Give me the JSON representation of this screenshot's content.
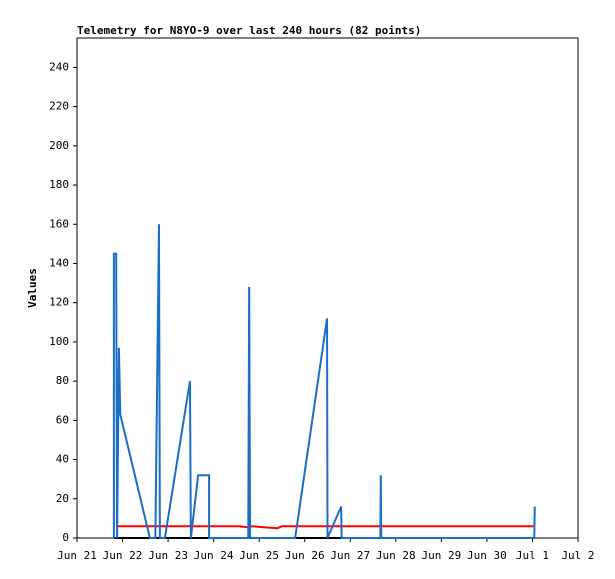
{
  "chart_data": {
    "type": "line",
    "title": "Telemetry for N8YO-9 over last 240 hours (82 points)",
    "y_label": "Values",
    "ylim": [
      0,
      255
    ],
    "yticks": [
      0,
      20,
      40,
      60,
      80,
      100,
      120,
      140,
      160,
      180,
      200,
      220,
      240
    ],
    "xlim": [
      0,
      11
    ],
    "xticks": [
      {
        "value": 0,
        "label": "Jun 21"
      },
      {
        "value": 1,
        "label": "Jun 22"
      },
      {
        "value": 2,
        "label": "Jun 23"
      },
      {
        "value": 3,
        "label": "Jun 24"
      },
      {
        "value": 4,
        "label": "Jun 25"
      },
      {
        "value": 5,
        "label": "Jun 26"
      },
      {
        "value": 6,
        "label": "Jun 27"
      },
      {
        "value": 7,
        "label": "Jun 28"
      },
      {
        "value": 8,
        "label": "Jun 29"
      },
      {
        "value": 9,
        "label": "Jun 30"
      },
      {
        "value": 10,
        "label": "Jul 1"
      },
      {
        "value": 11,
        "label": "Jul 2"
      }
    ],
    "series": [
      {
        "color": "#000000",
        "x": [
          0.81,
          10.04
        ],
        "values": [
          0,
          0
        ]
      },
      {
        "color": "#ff0000",
        "x": [
          0.86,
          3.55,
          3.75,
          3.85,
          4.1,
          4.4,
          4.5,
          10.04
        ],
        "values": [
          6,
          6,
          5.5,
          6,
          5.5,
          5,
          6,
          6
        ]
      },
      {
        "color": "#1a6ec8",
        "x": [
          0.81,
          0.81,
          0.86,
          0.88,
          0.92,
          0.95,
          1.6,
          1.72,
          1.8,
          1.82,
          1.93,
          2.48,
          2.5,
          2.66,
          2.9,
          2.9,
          3.76,
          3.78,
          3.8,
          4.79,
          5.49,
          5.5,
          5.8,
          5.81,
          6.66,
          6.67,
          6.68,
          10.04,
          10.05
        ],
        "values": [
          0,
          145,
          145,
          0,
          97,
          63,
          0,
          0,
          160,
          0,
          0,
          80,
          0,
          32,
          32,
          0,
          0,
          128,
          0,
          0,
          112,
          0,
          16,
          0,
          0,
          32,
          0,
          0,
          16
        ]
      }
    ]
  }
}
